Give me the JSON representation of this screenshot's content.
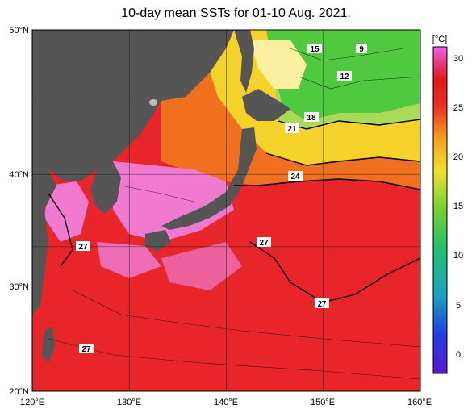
{
  "title": "10-day mean SSTs for 01-10 Aug. 2021.",
  "lat_labels": [
    "50°N",
    "40°N",
    "30°N",
    "20°N"
  ],
  "lon_labels": [
    "120°E",
    "130°E",
    "140°E",
    "150°E",
    "160°E"
  ],
  "colorbar": {
    "unit": "[°C]",
    "ticks": [
      "30",
      "25",
      "20",
      "15",
      "10",
      "5",
      "0"
    ]
  },
  "contour_labels": [
    "9",
    "12",
    "15",
    "18",
    "21",
    "24",
    "27",
    "27",
    "27",
    "27"
  ],
  "colors": {
    "land": "#555555",
    "warm_pink": "#f07ad0",
    "red": "#e8262a",
    "orange": "#f07020",
    "yellow": "#f5d22a",
    "green": "#40c040"
  }
}
